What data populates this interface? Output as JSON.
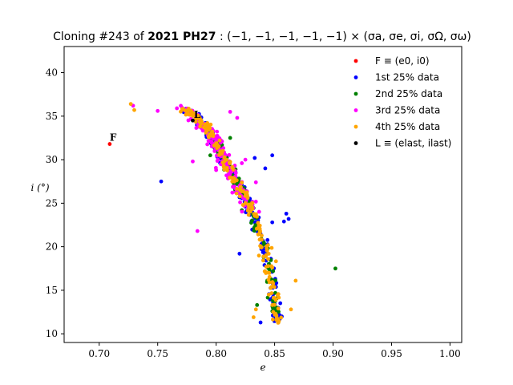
{
  "chart_data": {
    "type": "scatter",
    "title_parts": [
      "Cloning #243 of ",
      "2021 PH27",
      " : (−1, −1, −1, −1, −1) × (σa, σe, σi, σΩ, σω)"
    ],
    "xlabel": "e",
    "ylabel": "i (°)",
    "xlim": [
      0.67,
      1.01
    ],
    "ylim": [
      9.0,
      43.0
    ],
    "xticks": [
      "0.70",
      "0.75",
      "0.80",
      "0.85",
      "0.90",
      "0.95",
      "1.00"
    ],
    "xtick_values": [
      0.7,
      0.75,
      0.8,
      0.85,
      0.9,
      0.95,
      1.0
    ],
    "yticks": [
      "10",
      "15",
      "20",
      "25",
      "30",
      "35",
      "40"
    ],
    "ytick_values": [
      10,
      15,
      20,
      25,
      30,
      35,
      40
    ],
    "grid": false,
    "legend_position": "top-right",
    "colors": {
      "F": "#ff0000",
      "q1": "#0000ff",
      "q2": "#008000",
      "q3": "#ff00ff",
      "q4": "#ffa500",
      "L": "#000000"
    },
    "legend": [
      {
        "key": "F",
        "label": "F ≡ (e0, i0)"
      },
      {
        "key": "q1",
        "label": "1st 25% data"
      },
      {
        "key": "q2",
        "label": "2nd 25% data"
      },
      {
        "key": "q3",
        "label": "3rd 25% data"
      },
      {
        "key": "q4",
        "label": "4th 25% data"
      },
      {
        "key": "L",
        "label": "L ≡ (elast, ilast)"
      }
    ],
    "annotations": [
      {
        "text": "F",
        "x": 0.709,
        "y": 32.0
      },
      {
        "text": "L",
        "x": 0.781,
        "y": 34.6
      }
    ],
    "ridge": [
      [
        0.77,
        35.8
      ],
      [
        0.78,
        35.2
      ],
      [
        0.79,
        34.0
      ],
      [
        0.795,
        33.0
      ],
      [
        0.8,
        31.8
      ],
      [
        0.805,
        30.5
      ],
      [
        0.81,
        29.3
      ],
      [
        0.815,
        28.0
      ],
      [
        0.82,
        26.8
      ],
      [
        0.825,
        25.5
      ],
      [
        0.83,
        24.0
      ],
      [
        0.835,
        22.3
      ],
      [
        0.84,
        20.5
      ],
      [
        0.843,
        18.8
      ],
      [
        0.846,
        17.0
      ],
      [
        0.848,
        15.3
      ],
      [
        0.85,
        13.5
      ],
      [
        0.852,
        12.0
      ],
      [
        0.853,
        11.5
      ]
    ],
    "series": [
      {
        "key": "F",
        "points": [
          [
            0.709,
            31.8
          ]
        ]
      },
      {
        "key": "q1",
        "ridge_range": [
          0.0,
          1.0
        ],
        "spread": 0.004,
        "count": 170,
        "outliers": [
          [
            0.753,
            27.5
          ],
          [
            0.833,
            30.2
          ],
          [
            0.86,
            23.8
          ],
          [
            0.858,
            22.9
          ],
          [
            0.826,
            24.1
          ],
          [
            0.848,
            30.5
          ],
          [
            0.842,
            29.0
          ],
          [
            0.862,
            23.2
          ],
          [
            0.82,
            19.2
          ],
          [
            0.848,
            22.8
          ],
          [
            0.838,
            11.3
          ]
        ]
      },
      {
        "key": "q2",
        "ridge_range": [
          0.15,
          0.95
        ],
        "spread": 0.0035,
        "count": 140,
        "outliers": [
          [
            0.902,
            17.5
          ],
          [
            0.795,
            30.5
          ],
          [
            0.812,
            32.5
          ],
          [
            0.835,
            13.3
          ],
          [
            0.822,
            24.2
          ]
        ]
      },
      {
        "key": "q3",
        "ridge_range": [
          0.0,
          0.55
        ],
        "spread": 0.006,
        "count": 190,
        "outliers": [
          [
            0.729,
            36.2
          ],
          [
            0.75,
            35.6
          ],
          [
            0.784,
            21.8
          ],
          [
            0.78,
            29.8
          ],
          [
            0.812,
            35.5
          ],
          [
            0.818,
            34.8
          ],
          [
            0.825,
            30.0
          ],
          [
            0.822,
            29.6
          ],
          [
            0.834,
            27.4
          ],
          [
            0.8,
            28.8
          ]
        ]
      },
      {
        "key": "q4",
        "ridge_range": [
          0.0,
          1.0
        ],
        "spread": 0.004,
        "count": 200,
        "outliers": [
          [
            0.727,
            36.4
          ],
          [
            0.73,
            35.7
          ],
          [
            0.868,
            16.1
          ],
          [
            0.864,
            12.8
          ],
          [
            0.834,
            12.8
          ],
          [
            0.832,
            11.9
          ],
          [
            0.823,
            24.8
          ],
          [
            0.845,
            14.5
          ]
        ]
      },
      {
        "key": "L",
        "points": [
          [
            0.78,
            34.5
          ]
        ]
      }
    ]
  }
}
